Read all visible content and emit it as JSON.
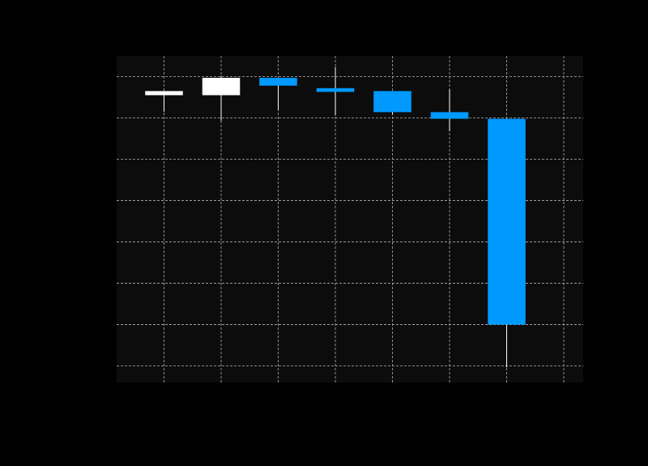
{
  "chart_data": {
    "type": "candlestick",
    "title": "",
    "xlabel": "",
    "ylabel": "",
    "x_index": [
      1,
      2,
      3,
      4,
      5,
      6,
      7
    ],
    "xlim": [
      0.17,
      8.34
    ],
    "ylim": [
      0.4,
      8.3
    ],
    "x_grid": [
      1,
      2,
      3,
      4,
      5,
      6,
      7,
      8
    ],
    "y_grid": [
      0.8,
      1.8,
      2.8,
      3.8,
      4.8,
      5.8,
      6.8,
      7.8
    ],
    "grid": true,
    "legend": "none",
    "candles": [
      {
        "open": 7.35,
        "close": 7.45,
        "high": 7.45,
        "low": 6.95
      },
      {
        "open": 7.35,
        "close": 7.77,
        "high": 7.82,
        "low": 6.73
      },
      {
        "open": 7.77,
        "close": 7.58,
        "high": 7.77,
        "low": 6.99
      },
      {
        "open": 7.52,
        "close": 7.43,
        "high": 8.03,
        "low": 6.86
      },
      {
        "open": 7.45,
        "close": 6.94,
        "high": 7.45,
        "low": 6.88
      },
      {
        "open": 6.94,
        "close": 6.78,
        "high": 7.49,
        "low": 6.48
      },
      {
        "open": 6.78,
        "close": 1.8,
        "high": 6.78,
        "low": 0.77
      }
    ],
    "colors": {
      "up": "#ffffff",
      "down": "#0099ff",
      "plot_background": "#0c0c0c",
      "figure_background": "#000000",
      "grid": "#b0b0b0",
      "wick": "#ffffff"
    }
  }
}
